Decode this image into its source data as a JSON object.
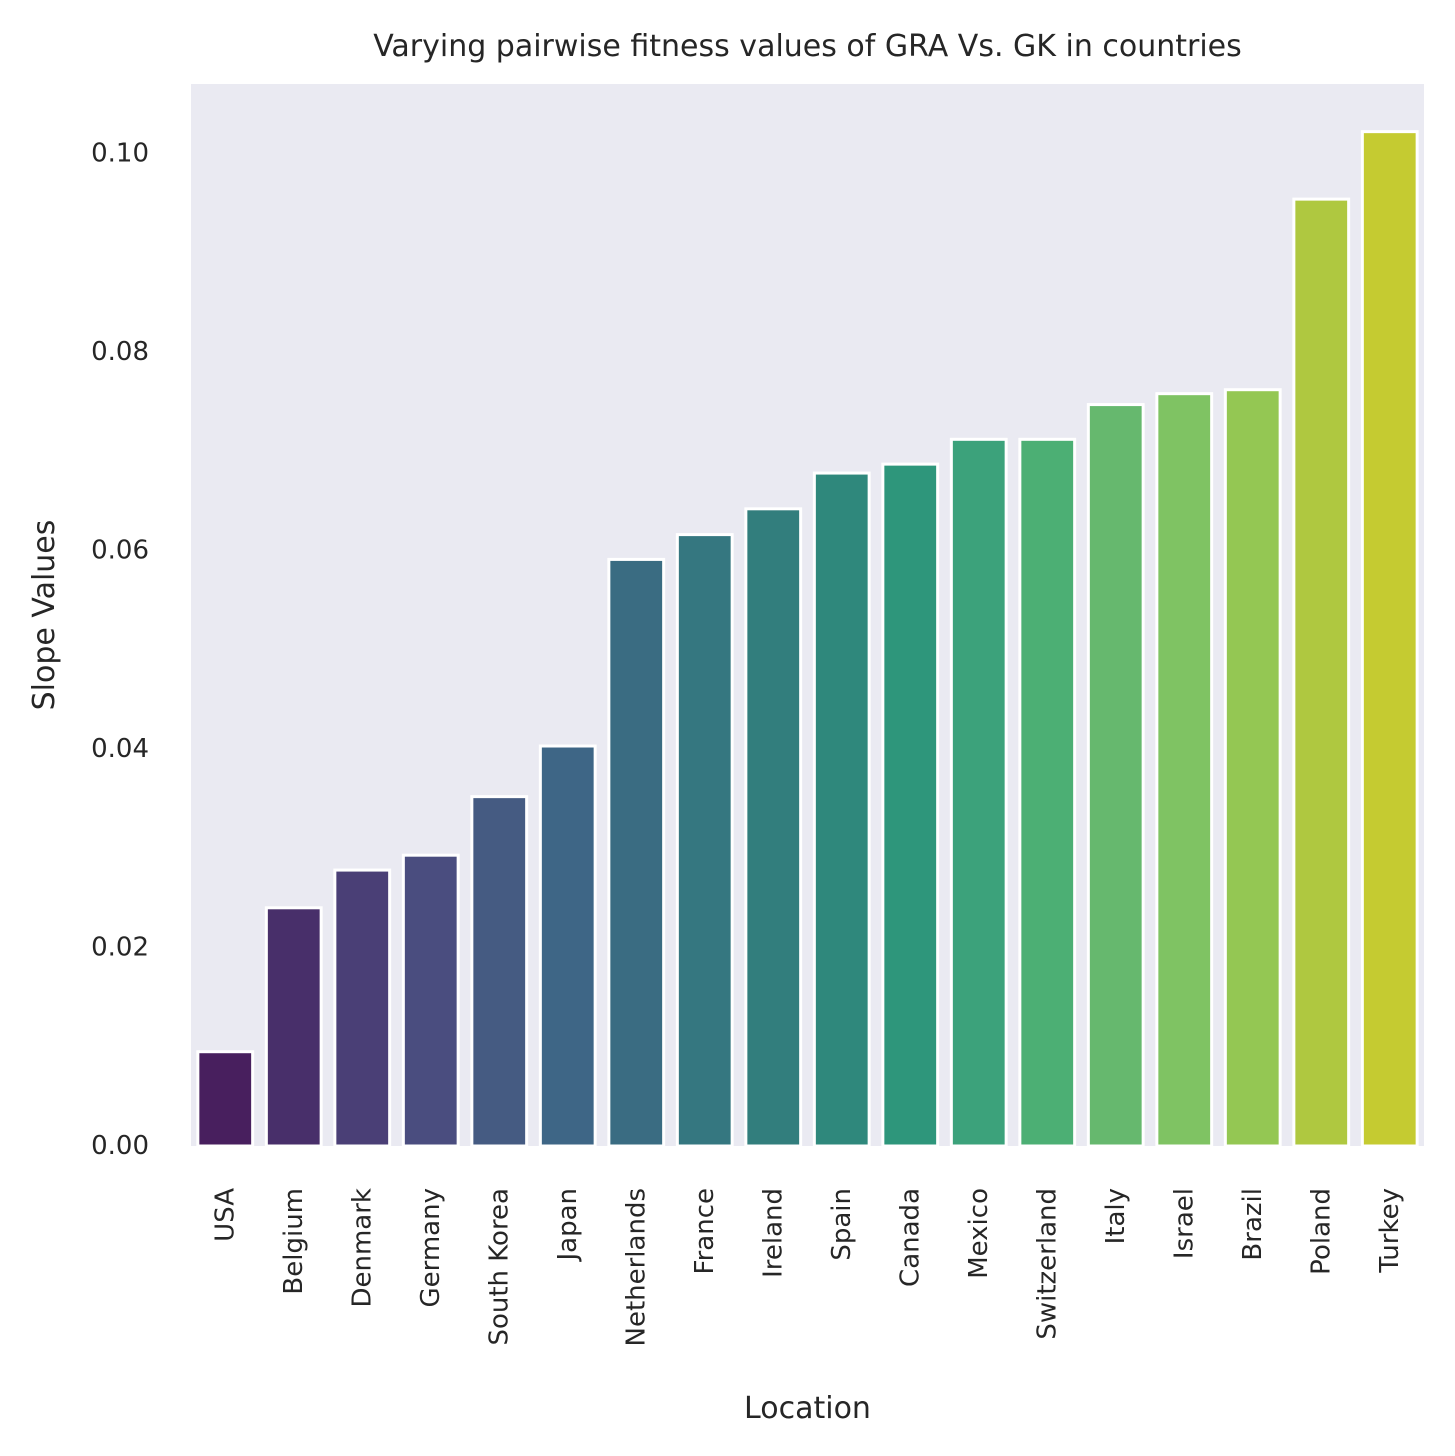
{
  "chart_data": {
    "type": "bar",
    "title": "Varying pairwise fitness values of GRA Vs. GK in countries",
    "xlabel": "Location",
    "ylabel": "Slope Values",
    "categories": [
      "USA",
      "Belgium",
      "Denmark",
      "Germany",
      "South Korea",
      "Japan",
      "Netherlands",
      "France",
      "Ireland",
      "Spain",
      "Canada",
      "Mexico",
      "Switzerland",
      "Italy",
      "Israel",
      "Brazil",
      "Poland",
      "Turkey"
    ],
    "values": [
      0.0095,
      0.024,
      0.0278,
      0.0293,
      0.0352,
      0.0403,
      0.0591,
      0.0616,
      0.0642,
      0.0678,
      0.0687,
      0.0712,
      0.0712,
      0.0747,
      0.0758,
      0.0762,
      0.0954,
      0.1022
    ],
    "colors": [
      "#481f5e",
      "#482f6a",
      "#4a3f76",
      "#4a4d7f",
      "#455b82",
      "#3e6686",
      "#3a6c82",
      "#357780",
      "#327e7d",
      "#2f887c",
      "#2e967b",
      "#3ca27b",
      "#4caf74",
      "#66b86e",
      "#7fc363",
      "#94c753",
      "#afc840",
      "#c5cb31"
    ],
    "yticks": [
      "0.00",
      "0.02",
      "0.04",
      "0.06",
      "0.08",
      "0.10"
    ],
    "ylim": [
      0,
      0.107
    ],
    "grid": false,
    "background": "#eaeaf2"
  }
}
